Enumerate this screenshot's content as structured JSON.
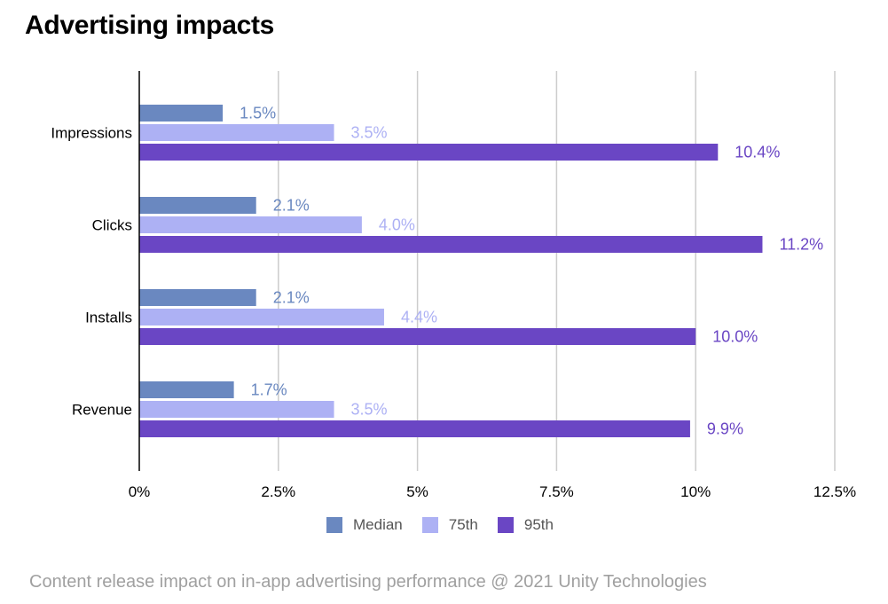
{
  "title": "Advertising impacts",
  "footer": "Content release impact on in-app advertising performance @ 2021 Unity Technologies",
  "colors": {
    "median": "#6a88c0",
    "p75": "#adb1f4",
    "p95": "#6a46c4",
    "grid": "#cccccc",
    "axis": "#000000"
  },
  "chart_data": {
    "type": "bar",
    "orientation": "horizontal",
    "categories": [
      "Impressions",
      "Clicks",
      "Installs",
      "Revenue"
    ],
    "series": [
      {
        "name": "Median",
        "values": [
          1.5,
          2.1,
          2.1,
          1.7
        ],
        "labels": [
          "1.5%",
          "2.1%",
          "2.1%",
          "1.7%"
        ]
      },
      {
        "name": "75th",
        "values": [
          3.5,
          4.0,
          4.4,
          3.5
        ],
        "labels": [
          "3.5%",
          "4.0%",
          "4.4%",
          "3.5%"
        ]
      },
      {
        "name": "95th",
        "values": [
          10.4,
          11.2,
          10.0,
          9.9
        ],
        "labels": [
          "10.4%",
          "11.2%",
          "10.0%",
          "9.9%"
        ]
      }
    ],
    "xticks": [
      0,
      2.5,
      5,
      7.5,
      10,
      12.5
    ],
    "xtick_labels": [
      "0%",
      "2.5%",
      "5%",
      "7.5%",
      "10%",
      "12.5%"
    ],
    "xlim": [
      0,
      12.5
    ],
    "grid": true,
    "legend_position": "bottom"
  }
}
